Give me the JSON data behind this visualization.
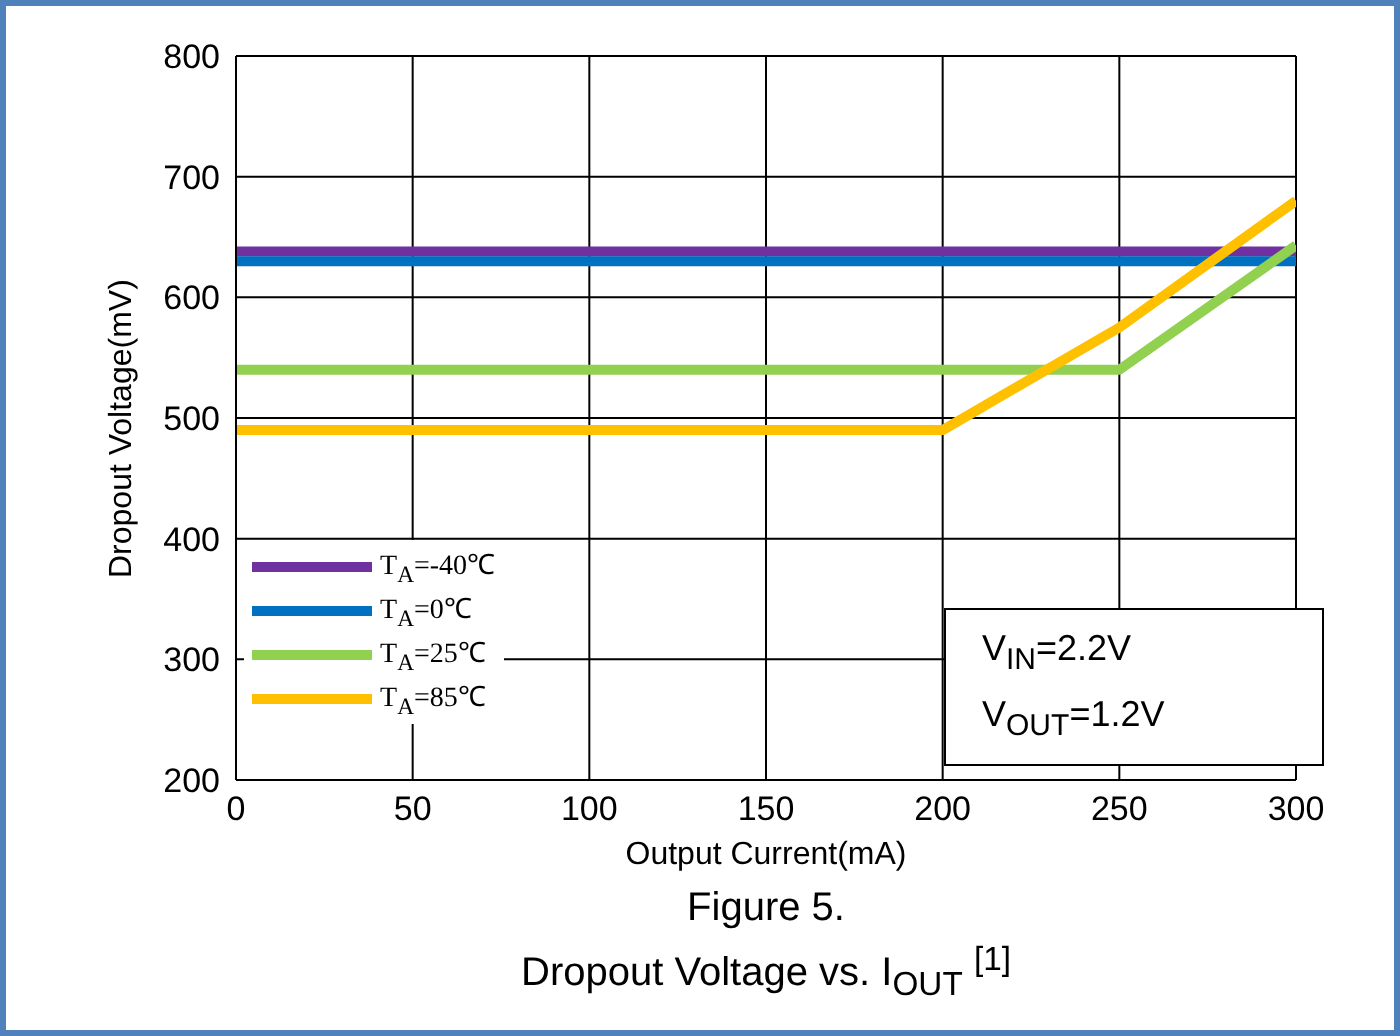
{
  "chart_data": {
    "type": "line",
    "title": "Figure 5.",
    "subtitle": "Dropout Voltage vs. I$_{OUT}$ $^{[1]}$",
    "xlabel": "Output Current(mA)",
    "ylabel": "Dropout Voltage(mV)",
    "xlim": [
      0,
      300
    ],
    "xticks": [
      0,
      50,
      100,
      150,
      200,
      250,
      300
    ],
    "ylim": [
      200,
      800
    ],
    "yticks": [
      200,
      300,
      400,
      500,
      600,
      700,
      800
    ],
    "grid": true,
    "legend": "bottom left",
    "marker": "none",
    "line_style": "solid",
    "annotations": [
      "V$_{IN}$=2.2V",
      "V$_{OUT}$=1.2V"
    ],
    "series": [
      {
        "name": "T$_{A}$=-40℃",
        "color": "#7030a0",
        "x": [
          0,
          300
        ],
        "values": [
          638,
          638
        ]
      },
      {
        "name": "T$_{A}$=0℃",
        "color": "#0070c0",
        "x": [
          0,
          300
        ],
        "values": [
          630,
          630
        ]
      },
      {
        "name": "T$_{A}$=25℃",
        "color": "#92d050",
        "x": [
          0,
          250,
          300
        ],
        "values": [
          540,
          540,
          643
        ]
      },
      {
        "name": "T$_{A}$=85℃",
        "color": "#ffc000",
        "x": [
          0,
          200,
          250,
          300
        ],
        "values": [
          490,
          490,
          575,
          680
        ]
      }
    ]
  }
}
